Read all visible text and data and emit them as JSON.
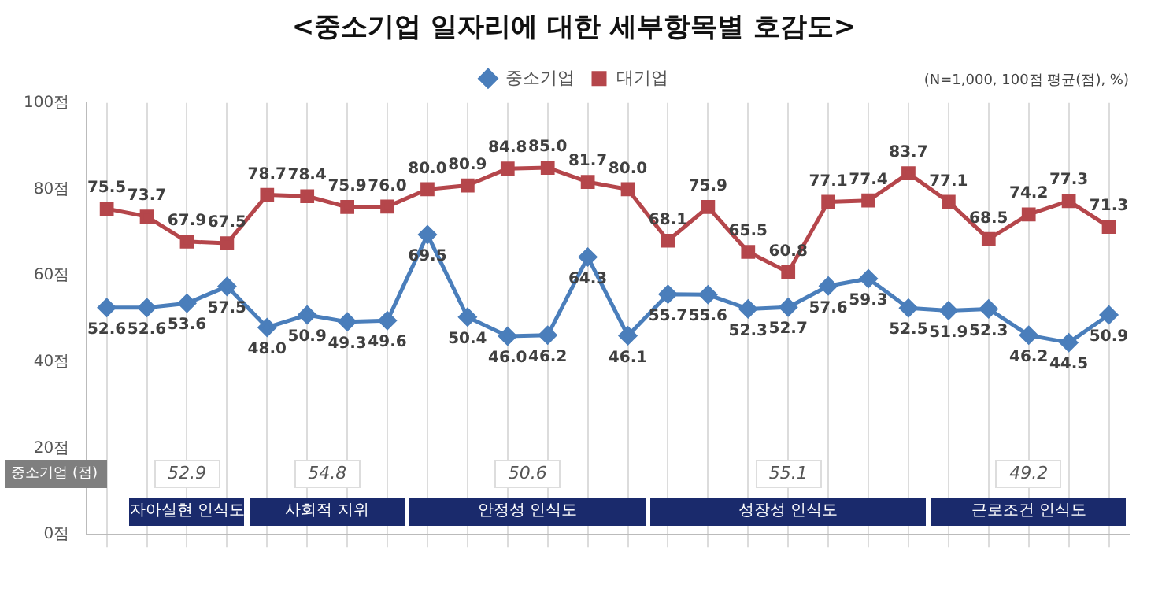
{
  "chart_data": {
    "type": "line",
    "title": "<중소기업 일자리에 대한 세부항목별 호감도>",
    "categories": [
      null,
      null,
      null,
      null,
      null,
      null,
      null,
      null,
      null,
      null,
      null,
      null,
      null,
      null,
      null,
      null,
      null,
      null,
      null,
      null,
      null,
      null,
      null,
      null,
      null,
      null
    ],
    "series": [
      {
        "name": "중소기업",
        "color": "#4a7ebb",
        "marker": "diamond",
        "values": [
          52.6,
          52.6,
          53.6,
          57.5,
          48.0,
          50.9,
          49.3,
          49.6,
          69.5,
          50.4,
          46.0,
          46.2,
          64.3,
          46.1,
          55.7,
          55.6,
          52.3,
          52.7,
          57.6,
          59.3,
          52.5,
          51.9,
          52.3,
          46.2,
          44.5,
          50.9
        ],
        "value_labels": [
          "52.6",
          "52.6",
          "53.6",
          "57.5",
          "48.0",
          "50.9",
          "49.3",
          "49.6",
          "69.5",
          "50.4",
          "46.0",
          "46.2",
          "64.3",
          "46.1",
          "55.7",
          "55.6",
          "52.3",
          "52.7",
          "57.6",
          "59.3",
          "52.5",
          "51.9",
          "52.3",
          "46.2",
          "44.5",
          "50.9"
        ]
      },
      {
        "name": "대기업",
        "color": "#b5464b",
        "marker": "square",
        "values": [
          75.5,
          73.7,
          67.9,
          67.5,
          78.7,
          78.4,
          75.9,
          76.0,
          80.0,
          80.9,
          84.8,
          85.0,
          81.7,
          80.0,
          68.1,
          75.9,
          65.5,
          60.8,
          77.1,
          77.4,
          83.7,
          77.1,
          68.5,
          74.2,
          77.3,
          71.3
        ],
        "value_labels": [
          "75.5",
          "73.7",
          "67.9",
          "67.5",
          "78.7",
          "78.4",
          "75.9",
          "76.0",
          "80.0",
          "80.9",
          "84.8",
          "85.0",
          "81.7",
          "80.0",
          "68.1",
          "75.9",
          "65.5",
          "60.8",
          "77.1",
          "77.4",
          "83.7",
          "77.1",
          "68.5",
          "74.2",
          "77.3",
          "71.3"
        ]
      }
    ],
    "ylim": [
      0,
      100
    ],
    "yticks": [
      {
        "value": 0,
        "label": "0점"
      },
      {
        "value": 20,
        "label": "20점"
      },
      {
        "value": 40,
        "label": "40점"
      },
      {
        "value": 60,
        "label": "60점"
      },
      {
        "value": 80,
        "label": "80점"
      },
      {
        "value": 100,
        "label": "100점"
      }
    ],
    "grid": "x",
    "legend": "top",
    "annotations": [
      "(N=1,000, 100점 평균(점), %)",
      "중소기업 (점)",
      "52.9",
      "자아실현 인식도",
      "54.8",
      "사회적 지위",
      "50.6",
      "안정성 인식도",
      "55.1",
      "성장성 인식도",
      "49.2",
      "근로조건 인식도"
    ]
  }
}
